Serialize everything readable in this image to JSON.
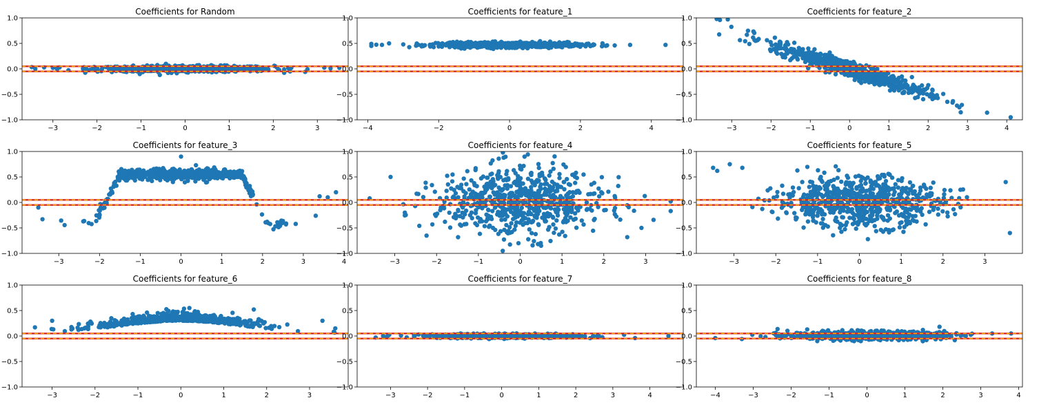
{
  "figure": {
    "background": "#ffffff"
  },
  "style": {
    "point_color": "#1f77b4",
    "threshold_line_colors": [
      "#d62728",
      "#ffd400"
    ]
  },
  "chart_data": [
    {
      "type": "scatter",
      "title": "Coefficients for Random",
      "xlim": [
        -3.7,
        3.7
      ],
      "ylim": [
        -1.0,
        1.0
      ],
      "xticks": [
        -3,
        -2,
        -1,
        0,
        1,
        2,
        3
      ],
      "yticks": [
        -1.0,
        -0.5,
        0.0,
        0.5,
        1.0
      ],
      "hlines": [
        0.05,
        -0.05
      ],
      "pattern": "flat",
      "x_range": [
        -3.5,
        3.5
      ],
      "y_center": 0.0,
      "y_spread": 0.03,
      "outliers": [
        [
          -3.4,
          0.0
        ],
        [
          -3.2,
          0.03
        ],
        [
          -3.0,
          0.02
        ],
        [
          3.3,
          0.01
        ],
        [
          3.5,
          0.02
        ]
      ]
    },
    {
      "type": "scatter",
      "title": "Coefficients for feature_1",
      "xlim": [
        -4.3,
        4.9
      ],
      "ylim": [
        -1.0,
        1.0
      ],
      "xticks": [
        -4,
        -2,
        0,
        2,
        4
      ],
      "yticks": [
        -1.0,
        -0.5,
        0.0,
        0.5,
        1.0
      ],
      "hlines": [
        0.05,
        -0.05
      ],
      "pattern": "flat",
      "x_range": [
        -3.9,
        3.5
      ],
      "y_center": 0.47,
      "y_spread": 0.025,
      "outliers": [
        [
          -3.9,
          0.45
        ],
        [
          -3.9,
          0.49
        ],
        [
          -3.6,
          0.47
        ],
        [
          -3.4,
          0.5
        ],
        [
          3.4,
          0.47
        ],
        [
          4.4,
          0.47
        ]
      ]
    },
    {
      "type": "scatter",
      "title": "Coefficients for feature_2",
      "xlim": [
        -3.9,
        4.4
      ],
      "ylim": [
        -1.0,
        1.0
      ],
      "xticks": [
        -3,
        -2,
        -1,
        0,
        1,
        2,
        3,
        4
      ],
      "yticks": [
        -1.0,
        -0.5,
        0.0,
        0.5,
        1.0
      ],
      "hlines": [
        0.05,
        -0.05
      ],
      "pattern": "linear",
      "x_range": [
        -3.5,
        4.1
      ],
      "slope": -0.24,
      "intercept": 0.0,
      "y_spread": 0.08,
      "outliers": [
        [
          -3.3,
          0.96
        ],
        [
          -3.1,
          0.97
        ],
        [
          3.5,
          -0.86
        ],
        [
          4.1,
          -0.95
        ]
      ]
    },
    {
      "type": "scatter",
      "title": "Coefficients for feature_3",
      "xlim": [
        -3.9,
        4.1
      ],
      "ylim": [
        -1.0,
        1.0
      ],
      "xticks": [
        -3,
        -2,
        -1,
        0,
        1,
        2,
        3,
        4
      ],
      "yticks": [
        -1.0,
        -0.5,
        0.0,
        0.5,
        1.0
      ],
      "hlines": [
        0.05,
        -0.05
      ],
      "pattern": "wave",
      "x_range": [
        -3.5,
        3.8
      ],
      "y_spread": 0.05,
      "outliers": [
        [
          -3.4,
          -0.33
        ],
        [
          -3.5,
          -0.1
        ],
        [
          0.0,
          0.9
        ],
        [
          3.4,
          0.12
        ],
        [
          3.8,
          0.2
        ],
        [
          3.6,
          0.1
        ]
      ]
    },
    {
      "type": "scatter",
      "title": "Coefficients for feature_4",
      "xlim": [
        -3.9,
        3.9
      ],
      "ylim": [
        -1.0,
        1.0
      ],
      "xticks": [
        -3,
        -2,
        -1,
        0,
        1,
        2,
        3
      ],
      "yticks": [
        -1.0,
        -0.5,
        0.0,
        0.5,
        1.0
      ],
      "hlines": [
        0.05,
        -0.05
      ],
      "pattern": "blob",
      "x_range": [
        -3.6,
        3.6
      ],
      "y_center": 0.0,
      "y_spread": 0.3,
      "outliers": [
        [
          -3.6,
          0.08
        ],
        [
          -3.1,
          0.5
        ],
        [
          3.6,
          0.02
        ],
        [
          2.9,
          -0.5
        ],
        [
          0.5,
          -0.85
        ]
      ]
    },
    {
      "type": "scatter",
      "title": "Coefficients for feature_5",
      "xlim": [
        -3.9,
        3.9
      ],
      "ylim": [
        -1.0,
        1.0
      ],
      "xticks": [
        -3,
        -2,
        -1,
        0,
        1,
        2,
        3
      ],
      "yticks": [
        -1.0,
        -0.5,
        0.0,
        0.5,
        1.0
      ],
      "hlines": [
        0.05,
        -0.05
      ],
      "pattern": "blob",
      "x_range": [
        -3.6,
        3.6
      ],
      "y_center": 0.02,
      "y_spread": 0.22,
      "outliers": [
        [
          -3.5,
          0.68
        ],
        [
          -3.4,
          0.62
        ],
        [
          -3.1,
          0.75
        ],
        [
          -2.8,
          0.68
        ],
        [
          3.6,
          -0.6
        ],
        [
          3.5,
          0.4
        ]
      ]
    },
    {
      "type": "scatter",
      "title": "Coefficients for feature_6",
      "xlim": [
        -3.7,
        3.9
      ],
      "ylim": [
        -1.0,
        1.0
      ],
      "xticks": [
        -3,
        -2,
        -1,
        0,
        1,
        2,
        3
      ],
      "yticks": [
        -1.0,
        -0.5,
        0.0,
        0.5,
        1.0
      ],
      "hlines": [
        0.05,
        -0.05
      ],
      "pattern": "hump",
      "x_range": [
        -3.4,
        3.7
      ],
      "y_spread": 0.07,
      "outliers": [
        [
          -3.4,
          0.17
        ],
        [
          -3.0,
          0.3
        ],
        [
          0.2,
          0.55
        ],
        [
          1.7,
          0.52
        ],
        [
          3.3,
          0.3
        ],
        [
          3.6,
          0.15
        ]
      ]
    },
    {
      "type": "scatter",
      "title": "Coefficients for feature_7",
      "xlim": [
        -3.9,
        4.9
      ],
      "ylim": [
        -1.0,
        1.0
      ],
      "xticks": [
        -3,
        -2,
        -1,
        0,
        1,
        2,
        3,
        4
      ],
      "yticks": [
        -1.0,
        -0.5,
        0.0,
        0.5,
        1.0
      ],
      "hlines": [
        0.05,
        -0.05
      ],
      "pattern": "flat",
      "x_range": [
        -3.5,
        3.7
      ],
      "y_center": 0.0,
      "y_spread": 0.02,
      "outliers": [
        [
          -3.4,
          -0.03
        ],
        [
          -3.2,
          0.0
        ],
        [
          3.6,
          -0.04
        ],
        [
          4.5,
          0.0
        ]
      ]
    },
    {
      "type": "scatter",
      "title": "Coefficients for feature_8",
      "xlim": [
        -4.5,
        4.1
      ],
      "ylim": [
        -1.0,
        1.0
      ],
      "xticks": [
        -4,
        -3,
        -2,
        -1,
        0,
        1,
        2,
        3,
        4
      ],
      "yticks": [
        -1.0,
        -0.5,
        0.0,
        0.5,
        1.0
      ],
      "hlines": [
        0.05,
        -0.05
      ],
      "pattern": "flat",
      "x_range": [
        -4.1,
        3.8
      ],
      "y_center": 0.01,
      "y_spread": 0.04,
      "outliers": [
        [
          -4.0,
          -0.04
        ],
        [
          -3.3,
          -0.06
        ],
        [
          3.3,
          0.05
        ],
        [
          3.8,
          0.05
        ]
      ]
    }
  ]
}
